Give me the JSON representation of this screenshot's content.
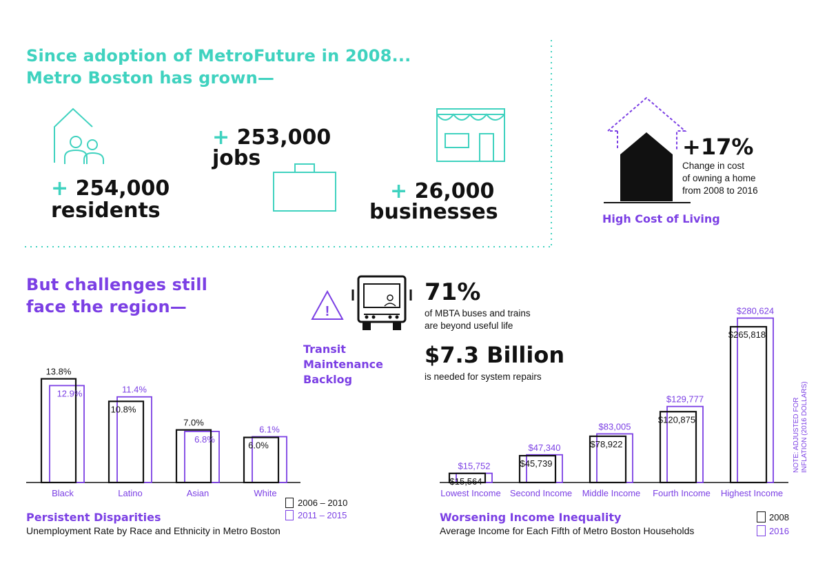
{
  "colors": {
    "teal": "#3fd2bf",
    "purple": "#7b3fe4",
    "black": "#111111"
  },
  "header": {
    "line1": "Since adoption of MetroFuture in 2008...",
    "line2": "Metro Boston has grown—"
  },
  "growth": {
    "residents": {
      "plus": "+",
      "value": "254,000",
      "label": "residents",
      "icon": "house-people-icon"
    },
    "jobs": {
      "plus": "+",
      "value": "253,000",
      "label": "jobs",
      "icon": "briefcase-icon"
    },
    "businesses": {
      "plus": "+",
      "value": "26,000",
      "label": "businesses",
      "icon": "storefront-icon"
    }
  },
  "cost": {
    "value": "+17%",
    "desc_line1": "Change in cost",
    "desc_line2": "of owning a home",
    "desc_line3": "from 2008 to 2016",
    "title": "High Cost of Living",
    "icon": "house-arrow-icon"
  },
  "challenges": {
    "line1": "But challenges still",
    "line2": "face the region—"
  },
  "transit": {
    "title_line1": "Transit",
    "title_line2": "Maintenance",
    "title_line3": "Backlog",
    "pct": "71%",
    "pct_desc_line1": "of MBTA buses and trains",
    "pct_desc_line2": "are beyond useful life",
    "amount": "$7.3 Billion",
    "amount_desc": "is needed for system repairs",
    "icons": [
      "warning-icon",
      "bus-icon"
    ]
  },
  "disparities": {
    "title": "Persistent Disparities",
    "subtitle": "Unemployment Rate by Race and Ethnicity in Metro Boston",
    "legend": [
      "2006 – 2010",
      "2011 – 2015"
    ]
  },
  "income": {
    "title": "Worsening Income Inequality",
    "subtitle": "Average Income for Each Fifth of Metro Boston Households",
    "note_line1": "NOTE: ADJUSTED FOR",
    "note_line2": "INFLATION (2016 DOLLARS)",
    "legend": [
      "2008",
      "2016"
    ]
  },
  "chart_data": [
    {
      "type": "bar",
      "categories": [
        "Black",
        "Latino",
        "Asian",
        "White"
      ],
      "series": [
        {
          "name": "2006 – 2010",
          "values": [
            13.8,
            10.8,
            7.0,
            6.0
          ],
          "labels": [
            "13.8%",
            "10.8%",
            "7.0%",
            "6.0%"
          ]
        },
        {
          "name": "2011 – 2015",
          "values": [
            12.9,
            11.4,
            6.8,
            6.1
          ],
          "labels": [
            "12.9%",
            "11.4%",
            "6.8%",
            "6.1%"
          ]
        }
      ],
      "title": "Persistent Disparities"
    },
    {
      "type": "bar",
      "categories": [
        "Lowest Income",
        "Second Income",
        "Middle Income",
        "Fourth Income",
        "Highest Income"
      ],
      "series": [
        {
          "name": "2008",
          "values": [
            15564,
            45739,
            78922,
            120875,
            265818
          ],
          "labels": [
            "$15,564",
            "$45,739",
            "$78,922",
            "$120,875",
            "$265,818"
          ]
        },
        {
          "name": "2016",
          "values": [
            15752,
            47340,
            83005,
            129777,
            280624
          ],
          "labels": [
            "$15,752",
            "$47,340",
            "$83,005",
            "$129,777",
            "$280,624"
          ]
        }
      ],
      "title": "Worsening Income Inequality"
    }
  ]
}
